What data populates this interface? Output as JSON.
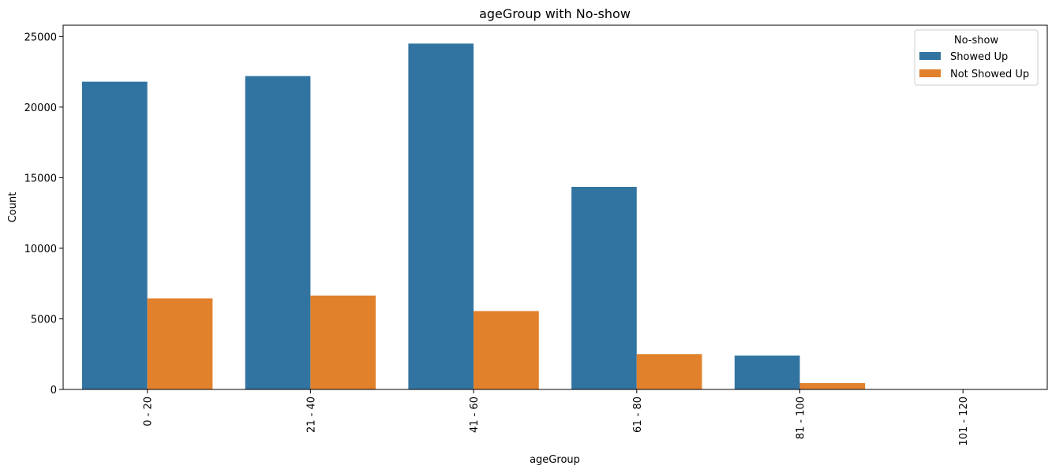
{
  "chart_data": {
    "type": "bar",
    "title": "ageGroup with No-show",
    "xlabel": "ageGroup",
    "ylabel": "Count",
    "categories": [
      "0 - 20",
      "21 - 40",
      "41 - 60",
      "61 - 80",
      "81 - 100",
      "101 - 120"
    ],
    "series": [
      {
        "name": "Showed Up",
        "color": "#3274a1",
        "values": [
          21800,
          22200,
          24500,
          14350,
          2400,
          6
        ]
      },
      {
        "name": "Not Showed Up",
        "color": "#e1812c",
        "values": [
          6450,
          6650,
          5550,
          2500,
          450,
          1
        ]
      }
    ],
    "ylim": [
      0,
      25800
    ],
    "yticks": [
      0,
      5000,
      10000,
      15000,
      20000,
      25000
    ],
    "legend": {
      "title": "No-show",
      "placement": "top-right"
    },
    "grid": false
  }
}
